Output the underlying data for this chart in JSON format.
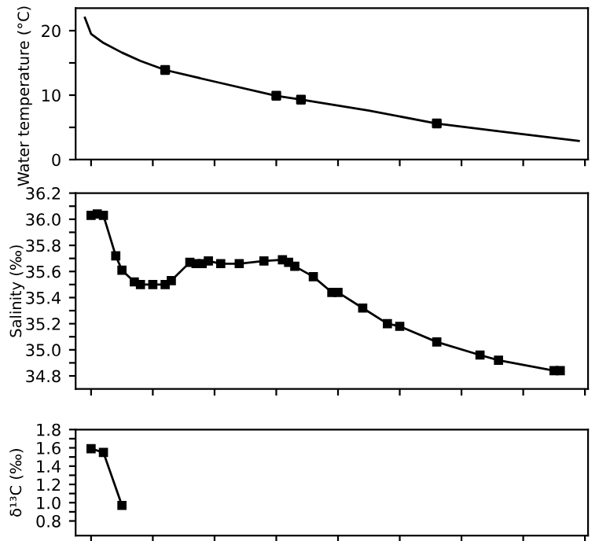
{
  "chart_data": [
    {
      "type": "line",
      "ylabel": "Water temperature (°C)",
      "categories": [
        null,
        null,
        null,
        null,
        null,
        null,
        null,
        null,
        null,
        null,
        null,
        null,
        null,
        null,
        null,
        null,
        null,
        null,
        null,
        null,
        null,
        null,
        null,
        null,
        null,
        null,
        null,
        null,
        null,
        null,
        null,
        null,
        null,
        null,
        null,
        null,
        null,
        null,
        null,
        null,
        null,
        null,
        null,
        null,
        null,
        null,
        null,
        null,
        null,
        null,
        null,
        null,
        null,
        null,
        null,
        null,
        null,
        null,
        null,
        null,
        null,
        null,
        null,
        null,
        null,
        null,
        null,
        null,
        null,
        null,
        null,
        null,
        null,
        null,
        null,
        null,
        null,
        null,
        null,
        null,
        null,
        null,
        null
      ],
      "ylim": [
        0,
        23.5
      ],
      "yticks": [
        0,
        {
          "value": 5,
          "label": null
        },
        10,
        {
          "value": 15,
          "label": null
        },
        20
      ],
      "grid": false,
      "series": [
        {
          "type": "line",
          "color": "#000000",
          "marker": "none",
          "values": [
            null,
            22.0,
            19.5,
            null,
            18.1,
            null,
            null,
            16.6,
            null,
            null,
            15.3,
            null,
            null,
            null,
            13.9,
            null,
            null,
            null,
            null,
            null,
            null,
            null,
            12.1,
            null,
            null,
            null,
            null,
            null,
            null,
            null,
            null,
            null,
            9.9,
            null,
            null,
            null,
            9.3,
            null,
            null,
            null,
            null,
            null,
            null,
            null,
            null,
            null,
            null,
            7.6,
            null,
            null,
            null,
            null,
            null,
            null,
            null,
            null,
            null,
            null,
            5.6,
            null,
            null,
            null,
            null,
            null,
            null,
            null,
            null,
            null,
            4.4,
            null,
            null,
            null,
            null,
            null,
            null,
            null,
            null,
            null,
            null,
            null,
            null,
            2.9,
            null
          ]
        },
        {
          "type": "scatter",
          "color": "#000000",
          "marker": "square",
          "values": [
            null,
            null,
            null,
            null,
            null,
            null,
            null,
            null,
            null,
            null,
            null,
            null,
            null,
            null,
            13.9,
            null,
            null,
            null,
            null,
            null,
            null,
            null,
            null,
            null,
            null,
            null,
            null,
            null,
            null,
            null,
            null,
            null,
            9.9,
            null,
            null,
            null,
            9.3,
            null,
            null,
            null,
            null,
            null,
            null,
            null,
            null,
            null,
            null,
            null,
            null,
            null,
            null,
            null,
            null,
            null,
            null,
            null,
            null,
            null,
            5.6,
            null,
            null,
            null,
            null,
            null,
            null,
            null,
            null,
            null,
            null,
            null,
            null,
            null,
            null,
            null,
            null,
            null,
            null,
            null,
            null,
            null,
            null,
            null,
            null
          ]
        }
      ]
    },
    {
      "type": "line",
      "ylabel": "Salinity (‰)",
      "categories": [
        null,
        null,
        null,
        null,
        null,
        null,
        null,
        null,
        null,
        null,
        null,
        null,
        null,
        null,
        null,
        null,
        null,
        null,
        null,
        null,
        null,
        null,
        null,
        null,
        null,
        null,
        null,
        null,
        null,
        null,
        null,
        null,
        null,
        null,
        null,
        null,
        null,
        null,
        null,
        null,
        null,
        null,
        null,
        null,
        null,
        null,
        null,
        null,
        null,
        null,
        null,
        null,
        null,
        null,
        null,
        null,
        null,
        null,
        null,
        null,
        null,
        null,
        null,
        null,
        null,
        null,
        null,
        null,
        null,
        null,
        null,
        null,
        null,
        null,
        null,
        null,
        null,
        null,
        null,
        null,
        null,
        null,
        null
      ],
      "ylim": [
        34.7,
        36.2
      ],
      "yticks": [
        34.8,
        {
          "value": 34.9,
          "label": null
        },
        {
          "value": 35,
          "label": "35.0"
        },
        {
          "value": 35.1,
          "label": null
        },
        35.2,
        {
          "value": 35.3,
          "label": null
        },
        35.4,
        {
          "value": 35.5,
          "label": null
        },
        35.6,
        {
          "value": 35.7,
          "label": null
        },
        35.8,
        {
          "value": 35.9,
          "label": null
        },
        {
          "value": 36,
          "label": "36.0"
        },
        {
          "value": 36.1,
          "label": null
        },
        36.2
      ],
      "grid": false,
      "series": [
        {
          "type": "line",
          "color": "#000000",
          "marker": "square",
          "values": [
            null,
            null,
            36.03,
            36.04,
            36.03,
            null,
            35.72,
            35.61,
            null,
            35.52,
            35.5,
            null,
            35.5,
            null,
            35.5,
            35.53,
            null,
            null,
            35.67,
            35.66,
            35.66,
            35.68,
            null,
            35.66,
            null,
            null,
            35.66,
            null,
            null,
            null,
            35.68,
            null,
            null,
            35.69,
            35.67,
            35.64,
            null,
            null,
            35.56,
            null,
            null,
            35.44,
            35.44,
            null,
            null,
            null,
            35.32,
            null,
            null,
            null,
            35.2,
            null,
            35.18,
            null,
            null,
            null,
            null,
            null,
            35.06,
            null,
            null,
            null,
            null,
            null,
            null,
            34.96,
            null,
            null,
            34.92,
            null,
            null,
            null,
            null,
            null,
            null,
            null,
            null,
            34.84,
            34.84,
            null,
            null,
            null,
            null
          ]
        }
      ]
    },
    {
      "type": "line",
      "ylabel": "δ¹³C (‰)",
      "categories": [
        null,
        null,
        null,
        null,
        null,
        null,
        null,
        null,
        null,
        null,
        null,
        null,
        null,
        null,
        null,
        null,
        null,
        null,
        null,
        null,
        null,
        null,
        null,
        null,
        null,
        null,
        null,
        null,
        null,
        null,
        null,
        null,
        null,
        null,
        null,
        null,
        null,
        null,
        null,
        null,
        null,
        null,
        null,
        null,
        null,
        null,
        null,
        null,
        null,
        null,
        null,
        null,
        null,
        null,
        null,
        null,
        null,
        null,
        null,
        null,
        null,
        null,
        null,
        null,
        null,
        null,
        null,
        null,
        null,
        null,
        null,
        null,
        null,
        null,
        null,
        null,
        null,
        null,
        null,
        null,
        null,
        null,
        null
      ],
      "ylim": [
        0.64,
        1.8
      ],
      "yticks": [
        0.8,
        {
          "value": 0.9,
          "label": null
        },
        {
          "value": 1,
          "label": "1.0"
        },
        {
          "value": 1.1,
          "label": null
        },
        1.2,
        {
          "value": 1.3,
          "label": null
        },
        1.4,
        {
          "value": 1.5,
          "label": null
        },
        1.6,
        {
          "value": 1.7,
          "label": null
        },
        1.8
      ],
      "grid": false,
      "series": [
        {
          "type": "line",
          "color": "#000000",
          "marker": "square",
          "values": [
            null,
            null,
            1.59,
            null,
            1.55,
            null,
            null,
            0.97,
            null,
            null,
            null,
            null,
            null,
            null,
            null,
            null,
            null,
            null,
            null,
            null,
            null,
            null,
            null,
            null,
            null,
            null,
            null,
            null,
            null,
            null,
            null,
            null,
            null,
            null,
            null,
            null,
            null,
            null,
            null,
            null,
            null,
            null,
            null,
            null,
            null,
            null,
            null,
            null,
            null,
            null,
            null,
            null,
            null,
            null,
            null,
            null,
            null,
            null,
            null,
            null,
            null,
            null,
            null,
            null,
            null,
            null,
            null,
            null,
            null,
            null,
            null,
            null,
            null,
            null,
            null,
            null,
            null,
            null,
            null,
            null,
            null,
            null,
            null
          ]
        }
      ]
    }
  ]
}
